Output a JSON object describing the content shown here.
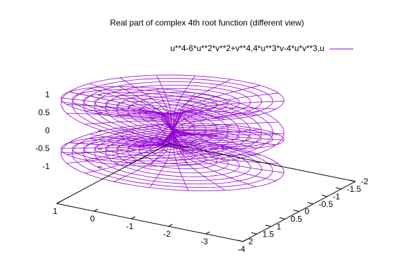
{
  "chart_data": {
    "type": "surface3d",
    "title": "Real part of complex 4th root function (different view)",
    "series": [
      {
        "name": "u**4-6*u**2*v**2+v**4,4*u**3*v-4*u*v**3,u",
        "color": "#9400d3"
      }
    ],
    "xlim": [
      -2,
      2
    ],
    "xticks": [
      2,
      1.5,
      1,
      0.5,
      0,
      -0.5,
      -1,
      -1.5,
      -2
    ],
    "ylim": [
      -4,
      1
    ],
    "yticks": [
      1,
      0,
      -1,
      -2,
      -3,
      -4
    ],
    "zlim": [
      -1,
      1
    ],
    "zticks": [
      1,
      0.5,
      0,
      -0.5,
      -1
    ]
  }
}
